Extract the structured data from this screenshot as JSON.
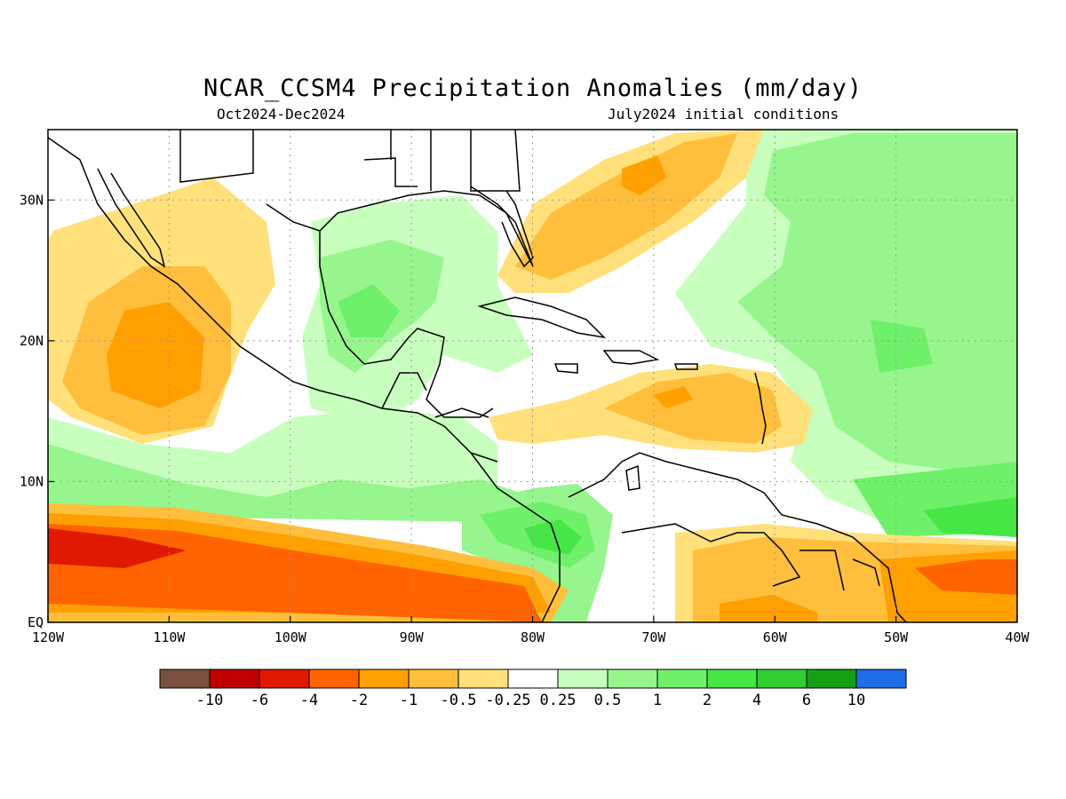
{
  "title": "NCAR_CCSM4 Precipitation Anomalies (mm/day)",
  "subtitle_left": "Oct2024-Dec2024",
  "subtitle_right": "July2024 initial conditions",
  "map": {
    "lon_range": [
      -120,
      -40
    ],
    "lat_range": [
      0,
      35
    ],
    "lon_ticks": [
      {
        "value": -120,
        "label": "120W"
      },
      {
        "value": -110,
        "label": "110W"
      },
      {
        "value": -100,
        "label": "100W"
      },
      {
        "value": -90,
        "label": "90W"
      },
      {
        "value": -80,
        "label": "80W"
      },
      {
        "value": -70,
        "label": "70W"
      },
      {
        "value": -60,
        "label": "60W"
      },
      {
        "value": -50,
        "label": "50W"
      },
      {
        "value": -40,
        "label": "40W"
      }
    ],
    "lat_ticks": [
      {
        "value": 0,
        "label": "EQ"
      },
      {
        "value": 10,
        "label": "10N"
      },
      {
        "value": 20,
        "label": "20N"
      },
      {
        "value": 30,
        "label": "30N"
      }
    ],
    "grid": "dotted"
  },
  "colorbar": {
    "colors": [
      "#7a5040",
      "#c00000",
      "#e01a00",
      "#ff6400",
      "#ff9f00",
      "#ffbe3c",
      "#ffe07a",
      "#ffffff",
      "#c8ffbe",
      "#96f58c",
      "#6ef06a",
      "#46e646",
      "#32cd32",
      "#14a014",
      "#1e6ee6"
    ],
    "labels": [
      "-10",
      "-6",
      "-4",
      "-2",
      "-1",
      "-0.5",
      "-0.25",
      "0.25",
      "0.5",
      "1",
      "2",
      "4",
      "6",
      "10"
    ]
  }
}
